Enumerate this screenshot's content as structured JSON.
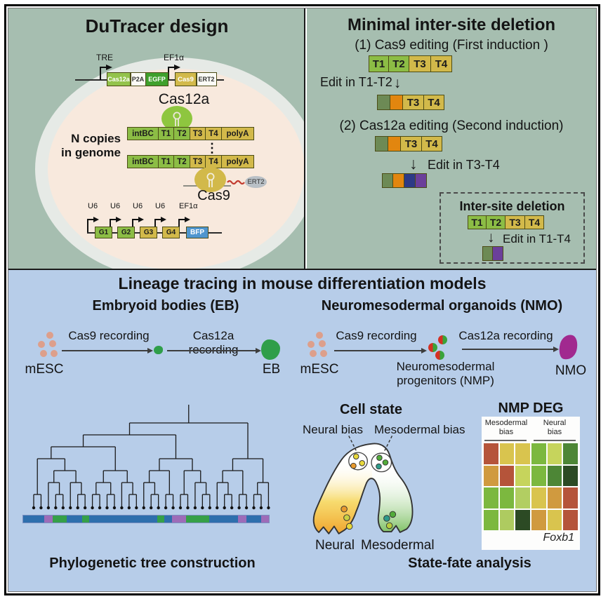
{
  "tl": {
    "title": "DuTracer  design",
    "tre": "TRE",
    "ef1a": "EF1α",
    "c1": [
      "Cas12a",
      "P2A",
      "EGFP",
      "Cas9",
      "ERT2"
    ],
    "cas12a_label": "Cas12a",
    "ncopies1": "N copies",
    "ncopies2": "in genome",
    "tape": [
      "intBC",
      "T1",
      "T2",
      "T3",
      "T4",
      "polyA"
    ],
    "dots": "⋮",
    "cas9_label": "Cas9",
    "ert2_label": "ERT2",
    "u6": "U6",
    "guides": [
      "G1",
      "G2",
      "G3",
      "G4",
      "BFP"
    ]
  },
  "tr": {
    "title": "Minimal inter-site deletion",
    "step1": "(1) Cas9 editing (First induction )",
    "tape1": [
      "T1",
      "T2",
      "T3",
      "T4"
    ],
    "edit1": "Edit in T1-T2",
    "t3": "T3",
    "t4": "T4",
    "step2": "(2) Cas12a editing (Second induction)",
    "edit2": "Edit in T3-T4",
    "inset_title": "Inter-site deletion",
    "edit3": "Edit in T1-T4",
    "down_arrow": "↓"
  },
  "bt": {
    "title": "Lineage tracing in mouse differentiation models",
    "eb_title": "Embryoid bodies (EB)",
    "nmo_title": "Neuromesodermal organoids (NMO)",
    "mesc": "mESC",
    "cas9_rec": "Cas9 recording",
    "cas12a_rec": "Cas12a recording",
    "eb": "EB",
    "nmo": "NMO",
    "nmp1": "Neuromesodermal",
    "nmp2": "progenitors (NMP)",
    "tree_caption": "Phylogenetic tree construction",
    "cell_state": "Cell state",
    "neural_bias": "Neural bias",
    "meso_bias": "Mesodermal bias",
    "neural": "Neural",
    "meso": "Mesodermal",
    "fate_caption": "State-fate analysis",
    "hm_title": "NMP DEG",
    "hm_g1a": "Mesodermal",
    "hm_g1b": "bias",
    "hm_g2a": "Neural",
    "hm_g2b": "bias",
    "gene": "Foxb1"
  },
  "tree": {
    "topology": [
      [
        [
          [
            [
              0,
              1
            ],
            [
              [
                2,
                [
                  3,
                  4
                ]
              ],
              [
                5,
                [
                  6,
                  7
                ]
              ]
            ]
          ],
          [
            [
              [
                8,
                9
              ],
              [
                10,
                11
              ]
            ],
            [
              12,
              [
                13,
                14
              ]
            ]
          ]
        ],
        [
          [
            [
              15,
              [
                16,
                17
              ]
            ],
            [
              18,
              19
            ]
          ],
          [
            [
              20,
              21
            ],
            [
              22,
              [
                23,
                24
              ]
            ]
          ]
        ]
      ],
      [
        [
          [
            25,
            [
              26,
              27
            ]
          ],
          [
            28,
            29
          ]
        ],
        [
          [
            30,
            31
          ],
          32
        ]
      ]
    ],
    "bar": [
      {
        "c": "#2e6fad",
        "w": 8.6
      },
      {
        "c": "#9d6cb8",
        "w": 3.3
      },
      {
        "c": "#36a048",
        "w": 5.7
      },
      {
        "c": "#2e6fad",
        "w": 6.4
      },
      {
        "c": "#36a048",
        "w": 2.7
      },
      {
        "c": "#2e6fad",
        "w": 27.7
      },
      {
        "c": "#36a048",
        "w": 2.9
      },
      {
        "c": "#2e6fad",
        "w": 2.9
      },
      {
        "c": "#9d6cb8",
        "w": 5.9
      },
      {
        "c": "#36a048",
        "w": 9.3
      },
      {
        "c": "#2e6fad",
        "w": 11.8
      },
      {
        "c": "#9d6cb8",
        "w": 3.4
      },
      {
        "c": "#2e6fad",
        "w": 5.9
      },
      {
        "c": "#9d6cb8",
        "w": 3.1
      }
    ]
  },
  "heatmap_rows": [
    [
      "#b5543a",
      "#d9c44e",
      "#d9c44e",
      "#7cb83f",
      "#c6d45c",
      "#4d8636"
    ],
    [
      "#d09a3f",
      "#b5543a",
      "#c6d45c",
      "#7cb83f",
      "#4d8636",
      "#2c4a24"
    ],
    [
      "#7cb83f",
      "#7cb83f",
      "#b2ce62",
      "#d9c44e",
      "#d09a3f",
      "#b5543a"
    ],
    [
      "#7cb83f",
      "#aecb60",
      "#2c4a24",
      "#d09a3f",
      "#d9c44e",
      "#b5543a"
    ]
  ],
  "colors": {
    "top_panel_bg": "#a6beb0",
    "bottom_panel_bg": "#b7cde9",
    "cell_inner": "#f8e9dd",
    "green_box": "#8cbd45",
    "gold_box": "#d2b94a",
    "bfp_blue": "#4f96cf",
    "edited_green": "#6d8a55",
    "edited_orange": "#e2860f",
    "edited_blue": "#2d3a86",
    "edited_purple": "#6b3f9a",
    "bar_blue": "#2e6fad",
    "bar_purple": "#9d6cb8",
    "bar_green": "#36a048",
    "mesc_dot": "#dd9f8b",
    "eb_green": "#2f9e49",
    "nmo_magenta": "#a1298f"
  }
}
